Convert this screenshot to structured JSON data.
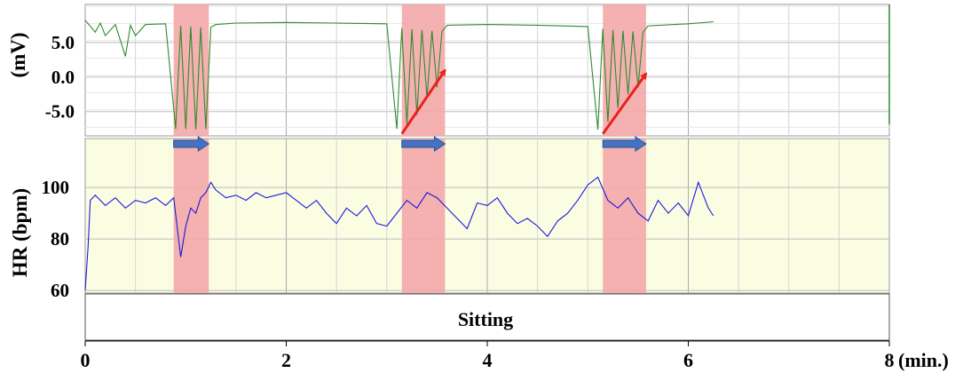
{
  "chart_data": [
    {
      "type": "line",
      "ylabel": "(mV)",
      "yticks": [
        "5.0",
        "0.0",
        "-5.0"
      ],
      "ytick_values": [
        5,
        0,
        -5
      ],
      "ylim": [
        -8.5,
        10.5
      ],
      "xlim": [
        0,
        8
      ],
      "grid": true,
      "background": "#ffffff",
      "series": [
        {
          "color": "#2e8b2e",
          "x": [
            0,
            0.1,
            0.15,
            0.2,
            0.3,
            0.4,
            0.45,
            0.5,
            0.6,
            0.8,
            0.9,
            0.95,
            1.0,
            1.05,
            1.1,
            1.15,
            1.2,
            1.25,
            1.3,
            1.5,
            2.0,
            2.5,
            3.0,
            3.1,
            3.15,
            3.2,
            3.25,
            3.3,
            3.35,
            3.4,
            3.45,
            3.5,
            3.55,
            3.6,
            4.0,
            4.5,
            5.0,
            5.1,
            5.15,
            5.2,
            5.25,
            5.3,
            5.35,
            5.4,
            5.45,
            5.5,
            5.55,
            5.6,
            6.0,
            6.25
          ],
          "values": [
            8.2,
            6.5,
            7.8,
            6.0,
            7.6,
            3.0,
            7.5,
            6.0,
            7.6,
            7.7,
            -7.5,
            7.4,
            -7.5,
            7.3,
            -7.6,
            7.2,
            -7.5,
            7.2,
            7.6,
            7.8,
            7.9,
            7.8,
            7.7,
            -7.5,
            7.1,
            -6.8,
            6.9,
            -5.5,
            6.8,
            -3.0,
            6.7,
            -1.5,
            6.6,
            7.5,
            7.6,
            7.5,
            7.3,
            -7.6,
            7.0,
            -6.5,
            6.8,
            -4.5,
            6.7,
            -2.5,
            6.6,
            -1.5,
            6.5,
            7.4,
            7.7,
            8.0
          ]
        }
      ],
      "highlight_regions": [
        [
          0.88,
          1.23
        ],
        [
          3.15,
          3.58
        ],
        [
          5.15,
          5.58
        ]
      ],
      "highlight_color": "#f4a8a8",
      "trend_arrows": [
        {
          "from": [
            3.15,
            -8.2
          ],
          "to": [
            3.58,
            1.0
          ],
          "color": "#e8221b"
        },
        {
          "from": [
            5.15,
            -8.2
          ],
          "to": [
            5.58,
            0.5
          ],
          "color": "#e8221b"
        }
      ]
    },
    {
      "type": "line",
      "ylabel": "HR (bpm)",
      "yticks": [
        "100",
        "80",
        "60"
      ],
      "ytick_values": [
        100,
        80,
        60
      ],
      "ylim": [
        59,
        119
      ],
      "xlim": [
        0,
        8
      ],
      "grid": true,
      "background": "#fbfde3",
      "series": [
        {
          "color": "#1a1adb",
          "x": [
            0,
            0.03,
            0.05,
            0.1,
            0.2,
            0.3,
            0.4,
            0.5,
            0.6,
            0.7,
            0.8,
            0.88,
            0.95,
            1.0,
            1.05,
            1.1,
            1.15,
            1.2,
            1.25,
            1.3,
            1.4,
            1.5,
            1.6,
            1.7,
            1.8,
            1.9,
            2.0,
            2.1,
            2.2,
            2.3,
            2.4,
            2.5,
            2.6,
            2.7,
            2.8,
            2.9,
            3.0,
            3.1,
            3.2,
            3.3,
            3.4,
            3.5,
            3.6,
            3.7,
            3.8,
            3.9,
            4.0,
            4.1,
            4.2,
            4.3,
            4.4,
            4.5,
            4.6,
            4.7,
            4.8,
            4.9,
            5.0,
            5.1,
            5.2,
            5.3,
            5.4,
            5.5,
            5.6,
            5.7,
            5.8,
            5.9,
            6.0,
            6.1,
            6.2,
            6.25
          ],
          "values": [
            60,
            78,
            95,
            97,
            93,
            96,
            92,
            95,
            94,
            96,
            93,
            96,
            73,
            85,
            92,
            90,
            96,
            98,
            102,
            99,
            96,
            97,
            95,
            98,
            96,
            97,
            98,
            95,
            92,
            95,
            90,
            86,
            92,
            89,
            93,
            86,
            85,
            90,
            95,
            92,
            98,
            96,
            92,
            88,
            84,
            94,
            93,
            96,
            90,
            86,
            88,
            85,
            81,
            87,
            90,
            95,
            101,
            104,
            95,
            92,
            96,
            90,
            87,
            95,
            90,
            94,
            89,
            102,
            92,
            89
          ]
        }
      ],
      "highlight_regions": [
        [
          0.88,
          1.23
        ],
        [
          3.15,
          3.58
        ],
        [
          5.15,
          5.58
        ]
      ],
      "highlight_color": "#f4a8a8",
      "duration_arrows": [
        [
          0.88,
          1.23
        ],
        [
          3.15,
          3.58
        ],
        [
          5.15,
          5.58
        ]
      ],
      "duration_arrow_color": "#4472c4"
    }
  ],
  "xaxis": {
    "unit_label": "(min.)",
    "ticks": [
      {
        "value": 0,
        "label": "0"
      },
      {
        "value": 2,
        "label": "2"
      },
      {
        "value": 4,
        "label": "4"
      },
      {
        "value": 6,
        "label": "6"
      },
      {
        "value": 8,
        "label": "8"
      }
    ]
  },
  "activity": {
    "label": "Sitting",
    "start": 0,
    "end": 8
  }
}
